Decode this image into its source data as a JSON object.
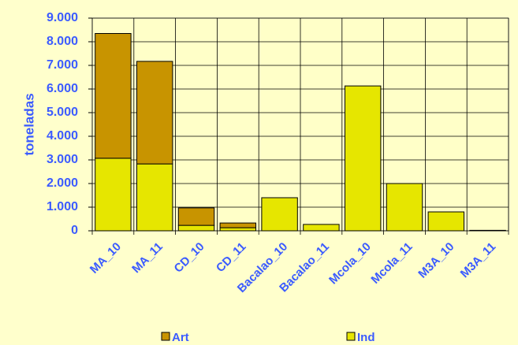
{
  "chart_data": {
    "type": "stacked_bar",
    "y_label": "toneladas",
    "categories": [
      "MA_10",
      "MA_11",
      "CD_10",
      "CD_11",
      "Bacalao_10",
      "Bacalao_11",
      "Mcola_10",
      "Mcola_11",
      "M3A_10",
      "M3A_11"
    ],
    "series": [
      {
        "name": "Ind",
        "color": "#e6e600",
        "values": [
          3070,
          2830,
          230,
          130,
          1400,
          270,
          6130,
          2000,
          800,
          20
        ]
      },
      {
        "name": "Art",
        "color": "#c89400",
        "values": [
          5280,
          4340,
          740,
          200,
          0,
          0,
          0,
          0,
          0,
          0
        ]
      }
    ],
    "ylim": [
      0,
      9000
    ],
    "yticks": [
      0,
      {
        "value": 1000,
        "label": "1.000"
      },
      {
        "value": 2000,
        "label": "2.000"
      },
      {
        "value": 3000,
        "label": "3.000"
      },
      {
        "value": 4000,
        "label": "4.000"
      },
      {
        "value": 5000,
        "label": "5.000"
      },
      {
        "value": 6000,
        "label": "6.000"
      },
      {
        "value": 7000,
        "label": "7.000"
      },
      {
        "value": 8000,
        "label": "8.000"
      },
      {
        "value": 9000,
        "label": "9.000"
      }
    ],
    "grid": true,
    "legend": "bottom"
  }
}
